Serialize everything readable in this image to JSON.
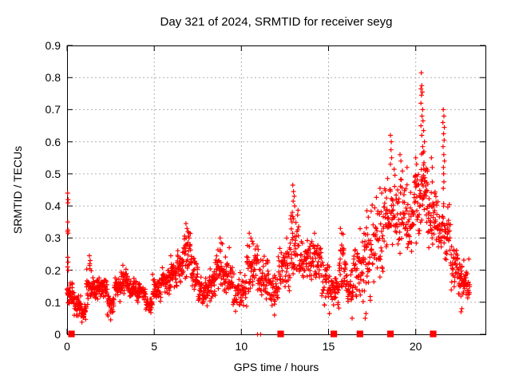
{
  "title": "Day 321 of 2024, SRMTID for receiver seyg",
  "chart_data": {
    "type": "scatter",
    "title": "Day 321 of 2024, SRMTID for receiver seyg",
    "xlabel": "GPS time / hours",
    "ylabel": "SRMTID / TECUs",
    "xlim": [
      0,
      24
    ],
    "ylim": [
      0,
      0.9
    ],
    "xtick_values": [
      0,
      5,
      10,
      15,
      20
    ],
    "xtick_labels": [
      "0",
      "5",
      "10",
      "15",
      "20"
    ],
    "ytick_values": [
      0,
      0.1,
      0.2,
      0.3,
      0.4,
      0.5,
      0.6,
      0.7,
      0.8,
      0.9
    ],
    "ytick_labels": [
      "0",
      "0.1",
      "0.2",
      "0.3",
      "0.4",
      "0.5",
      "0.6",
      "0.7",
      "0.8",
      "0.9"
    ],
    "grid": true,
    "grid_color": "#b0b0b0",
    "accent_color": "#ff0000",
    "legend": "none",
    "bands_format": "each band is [hour_start, hour_end, value_min, value_max, point_count] approximating the dense scatter cloud",
    "series": [
      {
        "name": "SRMTID",
        "marker": "plus",
        "color": "#ff0000",
        "bands": [
          [
            0.0,
            0.4,
            0.08,
            0.17,
            40
          ],
          [
            0.4,
            0.8,
            0.05,
            0.13,
            35
          ],
          [
            0.8,
            1.1,
            0.04,
            0.1,
            25
          ],
          [
            1.1,
            1.4,
            0.07,
            0.24,
            25
          ],
          [
            1.4,
            1.8,
            0.1,
            0.19,
            35
          ],
          [
            1.8,
            2.3,
            0.11,
            0.18,
            40
          ],
          [
            2.3,
            2.7,
            0.05,
            0.13,
            30
          ],
          [
            2.7,
            3.1,
            0.1,
            0.18,
            30
          ],
          [
            3.1,
            3.5,
            0.12,
            0.21,
            35
          ],
          [
            3.5,
            4.0,
            0.11,
            0.18,
            40
          ],
          [
            4.0,
            4.5,
            0.09,
            0.17,
            40
          ],
          [
            4.5,
            4.9,
            0.06,
            0.14,
            30
          ],
          [
            4.9,
            5.4,
            0.1,
            0.19,
            40
          ],
          [
            5.4,
            5.9,
            0.12,
            0.22,
            40
          ],
          [
            5.9,
            6.3,
            0.13,
            0.24,
            35
          ],
          [
            6.3,
            6.7,
            0.15,
            0.28,
            35
          ],
          [
            6.7,
            7.1,
            0.16,
            0.34,
            35
          ],
          [
            7.1,
            7.5,
            0.13,
            0.26,
            35
          ],
          [
            7.5,
            8.1,
            0.08,
            0.19,
            45
          ],
          [
            8.1,
            8.5,
            0.1,
            0.22,
            35
          ],
          [
            8.5,
            9.0,
            0.12,
            0.3,
            40
          ],
          [
            9.0,
            9.5,
            0.1,
            0.26,
            40
          ],
          [
            9.5,
            10.3,
            0.07,
            0.2,
            55
          ],
          [
            10.3,
            11.0,
            0.12,
            0.31,
            50
          ],
          [
            11.0,
            11.6,
            0.09,
            0.26,
            45
          ],
          [
            11.6,
            12.1,
            0.07,
            0.2,
            35
          ],
          [
            12.1,
            12.8,
            0.12,
            0.3,
            50
          ],
          [
            12.8,
            13.3,
            0.17,
            0.4,
            40
          ],
          [
            13.3,
            14.0,
            0.15,
            0.3,
            50
          ],
          [
            14.0,
            14.6,
            0.16,
            0.3,
            45
          ],
          [
            14.6,
            15.2,
            0.08,
            0.24,
            40
          ],
          [
            15.2,
            15.6,
            0.07,
            0.2,
            30
          ],
          [
            15.6,
            16.0,
            0.12,
            0.32,
            35
          ],
          [
            16.0,
            16.4,
            0.06,
            0.22,
            30
          ],
          [
            16.4,
            16.8,
            0.1,
            0.28,
            30
          ],
          [
            16.8,
            17.4,
            0.07,
            0.37,
            45
          ],
          [
            17.4,
            18.2,
            0.15,
            0.45,
            55
          ],
          [
            18.2,
            18.7,
            0.25,
            0.5,
            40
          ],
          [
            18.7,
            19.3,
            0.25,
            0.52,
            45
          ],
          [
            19.3,
            19.9,
            0.22,
            0.48,
            45
          ],
          [
            19.9,
            20.3,
            0.28,
            0.55,
            35
          ],
          [
            20.3,
            20.7,
            0.33,
            0.62,
            40
          ],
          [
            20.7,
            21.2,
            0.25,
            0.5,
            40
          ],
          [
            21.2,
            21.6,
            0.24,
            0.45,
            30
          ],
          [
            21.6,
            22.0,
            0.2,
            0.42,
            30
          ],
          [
            22.0,
            22.45,
            0.13,
            0.3,
            35
          ],
          [
            22.45,
            23.1,
            0.09,
            0.24,
            60
          ]
        ],
        "points": [
          [
            0.03,
            0.44
          ],
          [
            0.05,
            0.41
          ],
          [
            0.06,
            0.42
          ],
          [
            0.04,
            0.35
          ],
          [
            0.03,
            0.32
          ],
          [
            0.05,
            0.325
          ],
          [
            0.06,
            0.315
          ],
          [
            0.04,
            0.24
          ],
          [
            0.06,
            0.225
          ],
          [
            0.03,
            0.21
          ],
          [
            0.07,
            0.2
          ],
          [
            1.28,
            0.245
          ],
          [
            1.33,
            0.23
          ],
          [
            1.3,
            0.22
          ],
          [
            3.2,
            0.215
          ],
          [
            5.95,
            0.245
          ],
          [
            6.82,
            0.345
          ],
          [
            6.88,
            0.33
          ],
          [
            6.93,
            0.32
          ],
          [
            7.0,
            0.3
          ],
          [
            8.78,
            0.3
          ],
          [
            8.84,
            0.285
          ],
          [
            9.3,
            0.27
          ],
          [
            10.45,
            0.315
          ],
          [
            10.55,
            0.3
          ],
          [
            10.62,
            0.29
          ],
          [
            12.6,
            0.3
          ],
          [
            12.95,
            0.465
          ],
          [
            12.99,
            0.445
          ],
          [
            13.03,
            0.43
          ],
          [
            12.97,
            0.415
          ],
          [
            13.06,
            0.4
          ],
          [
            12.92,
            0.38
          ],
          [
            13.0,
            0.36
          ],
          [
            12.9,
            0.35
          ],
          [
            14.2,
            0.315
          ],
          [
            15.68,
            0.33
          ],
          [
            15.75,
            0.315
          ],
          [
            17.2,
            0.385
          ],
          [
            17.28,
            0.365
          ],
          [
            17.95,
            0.455
          ],
          [
            18.05,
            0.44
          ],
          [
            18.55,
            0.62
          ],
          [
            18.6,
            0.6
          ],
          [
            18.58,
            0.575
          ],
          [
            18.62,
            0.55
          ],
          [
            18.55,
            0.53
          ],
          [
            19.1,
            0.56
          ],
          [
            19.15,
            0.54
          ],
          [
            19.5,
            0.52
          ],
          [
            20.0,
            0.55
          ],
          [
            20.05,
            0.53
          ],
          [
            20.32,
            0.815
          ],
          [
            20.35,
            0.775
          ],
          [
            20.3,
            0.765
          ],
          [
            20.38,
            0.755
          ],
          [
            20.33,
            0.745
          ],
          [
            20.3,
            0.72
          ],
          [
            20.4,
            0.7
          ],
          [
            20.36,
            0.68
          ],
          [
            20.42,
            0.665
          ],
          [
            20.3,
            0.65
          ],
          [
            20.45,
            0.635
          ],
          [
            20.35,
            0.62
          ],
          [
            20.5,
            0.6
          ],
          [
            20.4,
            0.585
          ],
          [
            20.47,
            0.57
          ],
          [
            20.9,
            0.55
          ],
          [
            20.95,
            0.52
          ],
          [
            21.58,
            0.7
          ],
          [
            21.62,
            0.68
          ],
          [
            21.56,
            0.66
          ],
          [
            21.64,
            0.645
          ],
          [
            21.6,
            0.625
          ],
          [
            21.63,
            0.605
          ],
          [
            21.57,
            0.585
          ],
          [
            21.61,
            0.56
          ],
          [
            21.65,
            0.54
          ],
          [
            21.59,
            0.52
          ],
          [
            21.6,
            0.5
          ],
          [
            21.62,
            0.475
          ],
          [
            21.58,
            0.455
          ],
          [
            15.05,
            0.065
          ],
          [
            16.35,
            0.05
          ],
          [
            17.1,
            0.05
          ],
          [
            17.15,
            0.065
          ],
          [
            22.6,
            0.07
          ],
          [
            22.65,
            0.08
          ],
          [
            0.85,
            0.038
          ],
          [
            2.5,
            0.045
          ],
          [
            11.9,
            0.06
          ]
        ]
      },
      {
        "name": "baseline-flag-squares",
        "marker": "filled-square",
        "color": "#ff0000",
        "points": [
          [
            0.25,
            0
          ],
          [
            12.25,
            0
          ],
          [
            15.3,
            0
          ],
          [
            16.8,
            0
          ],
          [
            18.55,
            0
          ],
          [
            21.0,
            0
          ]
        ]
      },
      {
        "name": "baseline-small-plus",
        "marker": "small-plus",
        "color": "#ff0000",
        "points": [
          [
            10.93,
            0
          ],
          [
            11.1,
            0
          ]
        ]
      }
    ]
  }
}
